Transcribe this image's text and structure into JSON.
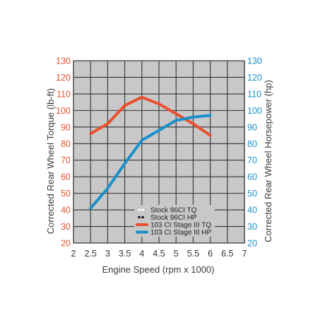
{
  "chart_data": {
    "type": "line",
    "xlabel": "Engine Speed (rpm x 1000)",
    "ylabel_left": "Corrected Rear Wheel Torque (lb-ft)",
    "ylabel_right": "Corrected Rear Wheel Horsepower (hp)",
    "xlim": [
      2,
      7
    ],
    "ylim": [
      20,
      130
    ],
    "x_ticks": [
      "2",
      "2.5",
      "3",
      "3.5",
      "4",
      "4.5",
      "5",
      "5.5",
      "6",
      "6.5",
      "7"
    ],
    "y_ticks_left": [
      "130",
      "120",
      "110",
      "100",
      "90",
      "80",
      "70",
      "60",
      "50",
      "40",
      "30",
      "20"
    ],
    "y_ticks_right": [
      "130",
      "120",
      "110",
      "100",
      "90",
      "80",
      "70",
      "60",
      "50",
      "40",
      "30",
      "20"
    ],
    "grid": true,
    "legend_position": "bottom-right",
    "colors": {
      "plot_background": "#c8c8c8",
      "grid": "#333333",
      "left_axis": "#e8502e",
      "right_axis": "#1a8fc9",
      "x_axis": "#333333"
    },
    "series": [
      {
        "name": "Stock 96CI TQ",
        "color": "#ffffff",
        "style": "dotted",
        "x": [],
        "y": []
      },
      {
        "name": "Stock 96CI HP",
        "color": "#111111",
        "style": "dotted",
        "x": [],
        "y": []
      },
      {
        "name": "103 CI Stage III TQ",
        "color": "#e8502e",
        "style": "solid",
        "x": [
          2.5,
          3,
          3.5,
          4,
          4.5,
          5,
          5.5,
          6
        ],
        "y": [
          86,
          92,
          103,
          108,
          104,
          98,
          92,
          85
        ]
      },
      {
        "name": "103 CI Stage III HP",
        "color": "#1a8fc9",
        "style": "solid",
        "x": [
          2.5,
          3,
          3.5,
          4,
          4.5,
          5,
          5.5,
          6
        ],
        "y": [
          41,
          53,
          68,
          82,
          88,
          94,
          96,
          97
        ]
      }
    ]
  }
}
